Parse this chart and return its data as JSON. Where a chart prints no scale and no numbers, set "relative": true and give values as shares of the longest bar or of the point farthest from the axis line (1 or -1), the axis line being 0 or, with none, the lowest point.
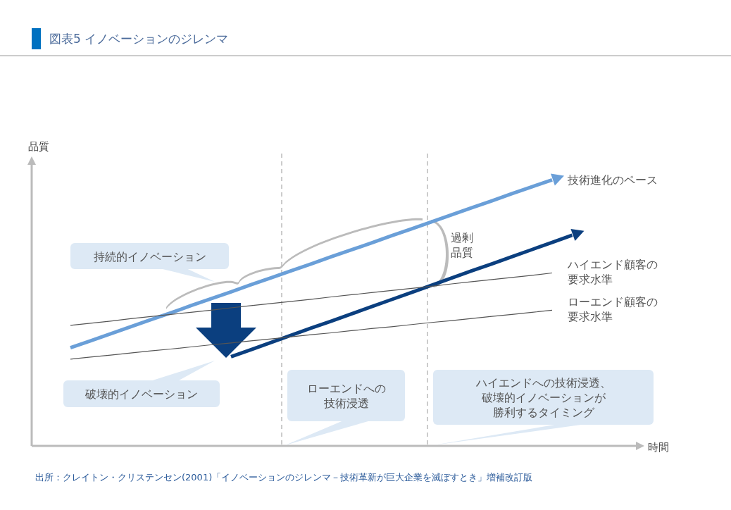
{
  "chart_data": {
    "type": "line",
    "title": "図表5 イノベーションのジレンマ",
    "ylabel": "品質",
    "relative": true,
    "legend": "right",
    "categories": [
      null,
      null,
      null,
      null,
      null,
      null,
      null,
      null,
      null,
      null,
      null,
      null,
      null,
      null,
      null,
      null,
      null,
      null,
      null,
      null,
      null,
      null,
      null,
      null,
      null,
      null
    ],
    "series": [
      {
        "name": "技術進化のペース",
        "color": "#6a9fd8",
        "values": [
          0.369,
          0.395,
          0.421,
          0.448,
          0.474,
          0.5,
          0.527,
          0.553,
          0.579,
          0.606,
          0.632,
          0.658,
          0.684,
          0.711,
          0.737,
          0.763,
          0.79,
          0.816,
          0.842,
          0.869,
          0.895,
          0.921,
          0.948,
          0.974,
          1.0,
          null
        ]
      },
      {
        "color": "#0b3f7f",
        "values": [
          null,
          null,
          null,
          null,
          null,
          null,
          null,
          null,
          0.335,
          0.362,
          0.389,
          0.416,
          0.443,
          0.469,
          0.496,
          0.523,
          0.55,
          0.577,
          0.604,
          0.631,
          0.658,
          0.684,
          0.711,
          0.738,
          0.765,
          0.792
        ]
      },
      {
        "name": "ハイエンド顧客の要求水準",
        "color": "#555555",
        "values": [
          0.453,
          0.461,
          0.469,
          0.478,
          0.486,
          0.494,
          0.502,
          0.51,
          0.519,
          0.527,
          0.535,
          0.543,
          0.551,
          0.56,
          0.568,
          0.576,
          0.584,
          0.592,
          0.6,
          0.609,
          0.617,
          0.625,
          0.633,
          0.641,
          0.65,
          null
        ]
      },
      {
        "name": "ローエンド顧客の要求水準",
        "color": "#555555",
        "values": [
          0.326,
          0.334,
          0.341,
          0.349,
          0.357,
          0.364,
          0.372,
          0.38,
          0.387,
          0.395,
          0.402,
          0.41,
          0.418,
          0.425,
          0.433,
          0.441,
          0.448,
          0.456,
          0.464,
          0.471,
          0.479,
          0.487,
          0.494,
          0.502,
          0.51,
          null
        ]
      }
    ],
    "annotations": [
      "持続的イノベーション",
      "破壊的イノベーション",
      "ローエンドへの技術浸透",
      "ハイエンドへの技術浸透、破壊的イノベーションが勝利するタイミング",
      "過剰品質",
      "時間",
      "出所：クレイトン・クリステンセン(2001)「イノベーションのジレンマ－技術革新が巨大企業を滅ぼすとき」増補改訂版"
    ]
  }
}
